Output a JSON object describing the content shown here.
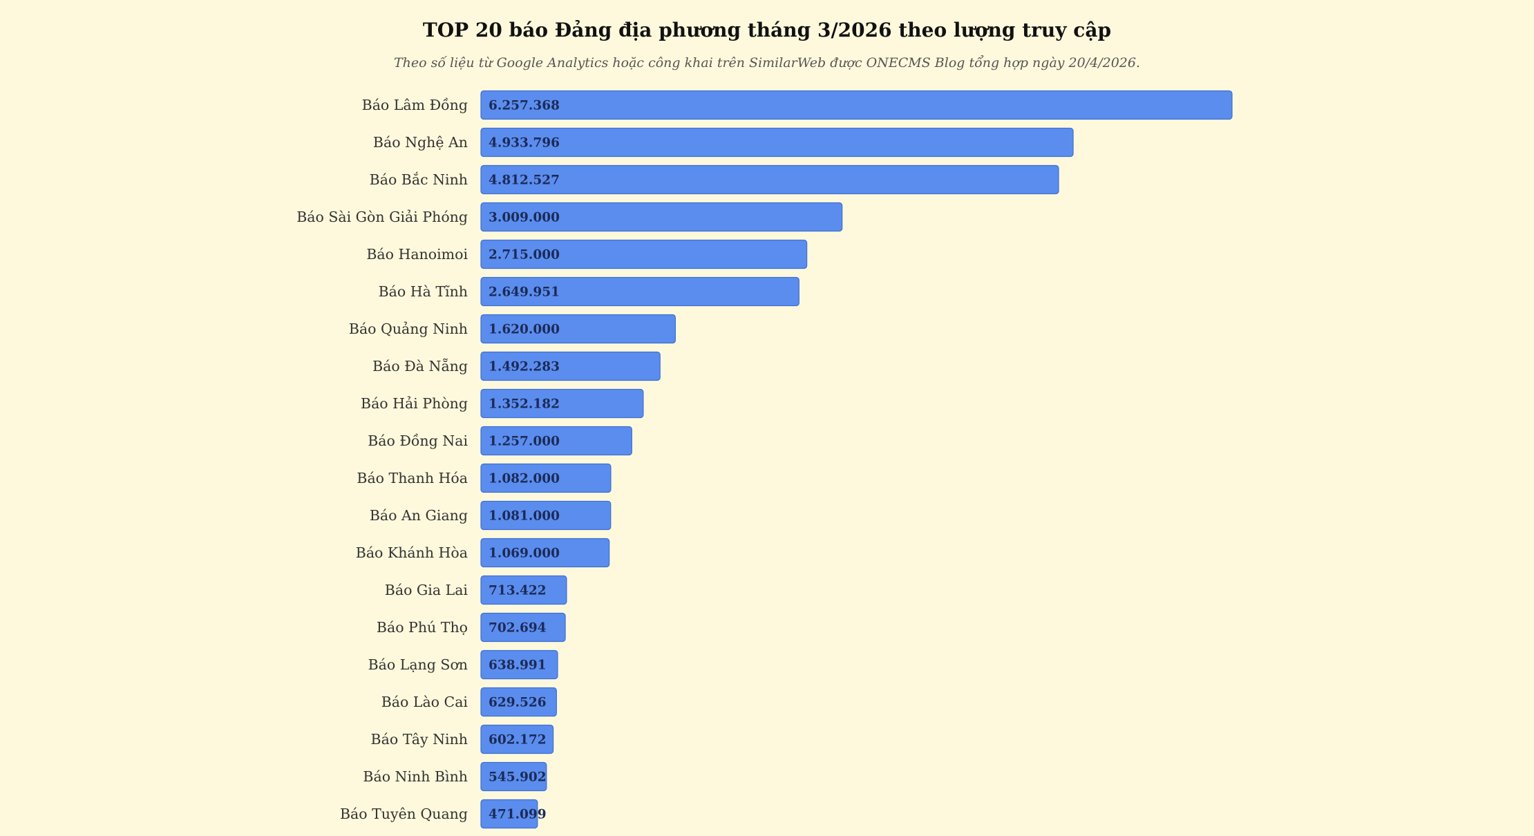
{
  "colors": {
    "background": "#fef9dc",
    "bar_fill": "#5b8def",
    "bar_stroke": "#3f6fd0",
    "value_text": "#1c2a55"
  },
  "chart_data": {
    "type": "bar",
    "orientation": "horizontal",
    "title": "TOP 20 báo Đảng địa phương tháng 3/2026 theo lượng truy cập",
    "subtitle": "Theo số liệu từ Google Analytics hoặc công khai trên SimilarWeb được ONECMS Blog tổng hợp ngày 20/4/2026.",
    "xlabel": "",
    "ylabel": "",
    "grid": false,
    "legend": "none",
    "xlim": [
      0,
      6257368
    ],
    "categories": [
      "Báo Lâm Đồng",
      "Báo Nghệ An",
      "Báo Bắc Ninh",
      "Báo Sài Gòn Giải Phóng",
      "Báo Hanoimoi",
      "Báo Hà Tĩnh",
      "Báo Quảng Ninh",
      "Báo Đà Nẵng",
      "Báo Hải Phòng",
      "Báo Đồng Nai",
      "Báo Thanh Hóa",
      "Báo An Giang",
      "Báo Khánh Hòa",
      "Báo Gia Lai",
      "Báo Phú Thọ",
      "Báo Lạng Sơn",
      "Báo Lào Cai",
      "Báo Tây Ninh",
      "Báo Ninh Bình",
      "Báo Tuyên Quang"
    ],
    "values": [
      6257368,
      4933796,
      4812527,
      3009000,
      2715000,
      2649951,
      1620000,
      1492283,
      1352182,
      1257000,
      1082000,
      1081000,
      1069000,
      713422,
      702694,
      638991,
      629526,
      602172,
      545902,
      471099
    ],
    "value_labels": [
      "6.257.368",
      "4.933.796",
      "4.812.527",
      "3.009.000",
      "2.715.000",
      "2.649.951",
      "1.620.000",
      "1.492.283",
      "1.352.182",
      "1.257.000",
      "1.082.000",
      "1.081.000",
      "1.069.000",
      "713.422",
      "702.694",
      "638.991",
      "629.526",
      "602.172",
      "545.902",
      "471.099"
    ]
  }
}
